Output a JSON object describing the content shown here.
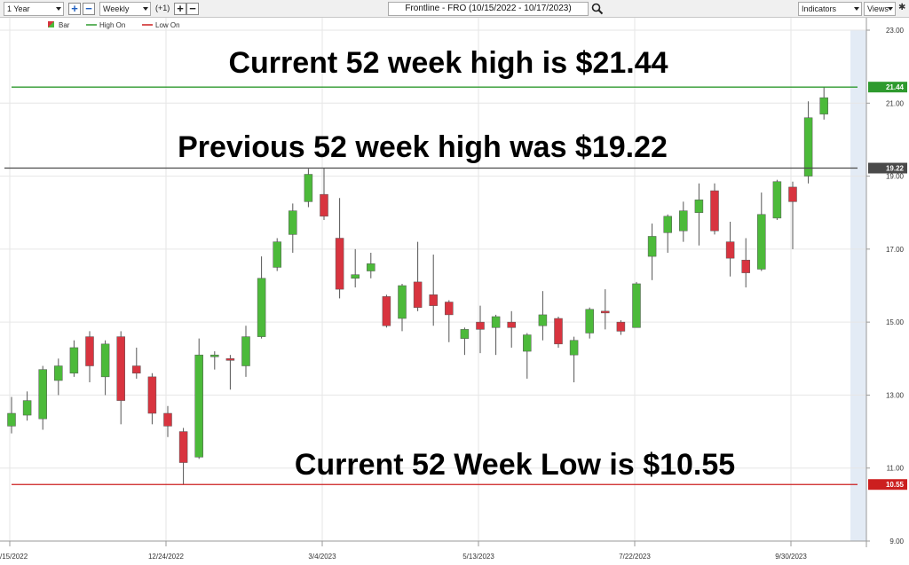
{
  "toolbar": {
    "period": "1 Year",
    "interval": "Weekly",
    "offset": "(+1)",
    "symbol": "Frontline - FRO (10/15/2022 - 10/17/2023)",
    "indicators": "Indicators",
    "views": "Views"
  },
  "legend": {
    "bar": "Bar",
    "high_on": "High On",
    "low_on": "Low On"
  },
  "colors": {
    "up": "#4cba3a",
    "down": "#d8343f",
    "high_line": "#2e9a2e",
    "prev_high_line": "#4a4a4a",
    "low_line": "#cc1f1f"
  },
  "annotations": {
    "current_high": "Current 52 week high is $21.44",
    "previous_high": "Previous 52 week high was $19.22",
    "current_low": "Current 52 Week Low is $10.55"
  },
  "chart_data": {
    "type": "candlestick",
    "y_range": [
      9.0,
      23.0
    ],
    "y_ticks": [
      "23.00",
      "21.00",
      "19.00",
      "17.00",
      "15.00",
      "13.00",
      "11.00",
      "9.00"
    ],
    "x_labels": [
      {
        "label": "/15/2022",
        "index": 0
      },
      {
        "label": "12/24/2022",
        "index": 10
      },
      {
        "label": "3/4/2023",
        "index": 20
      },
      {
        "label": "5/13/2023",
        "index": 30
      },
      {
        "label": "7/22/2023",
        "index": 40
      },
      {
        "label": "9/30/2023",
        "index": 50
      }
    ],
    "price_lines": [
      {
        "name": "current-high",
        "value": 21.44,
        "label": "21.44"
      },
      {
        "name": "previous-high",
        "value": 19.22,
        "label": "19.22"
      },
      {
        "name": "current-low",
        "value": 10.55,
        "label": "10.55"
      }
    ],
    "candles": [
      {
        "o": 12.15,
        "h": 12.95,
        "l": 11.95,
        "c": 12.5
      },
      {
        "o": 12.45,
        "h": 13.1,
        "l": 12.3,
        "c": 12.85
      },
      {
        "o": 12.35,
        "h": 13.8,
        "l": 12.05,
        "c": 13.7
      },
      {
        "o": 13.4,
        "h": 14.0,
        "l": 13.0,
        "c": 13.8
      },
      {
        "o": 13.6,
        "h": 14.5,
        "l": 13.5,
        "c": 14.3
      },
      {
        "o": 14.6,
        "h": 14.75,
        "l": 13.35,
        "c": 13.8
      },
      {
        "o": 13.5,
        "h": 14.5,
        "l": 13.0,
        "c": 14.4
      },
      {
        "o": 14.6,
        "h": 14.75,
        "l": 12.2,
        "c": 12.85
      },
      {
        "o": 13.8,
        "h": 14.3,
        "l": 13.45,
        "c": 13.6
      },
      {
        "o": 13.5,
        "h": 13.6,
        "l": 12.2,
        "c": 12.5
      },
      {
        "o": 12.5,
        "h": 12.7,
        "l": 11.85,
        "c": 12.15
      },
      {
        "o": 12.0,
        "h": 12.1,
        "l": 10.55,
        "c": 11.15
      },
      {
        "o": 11.3,
        "h": 14.55,
        "l": 11.25,
        "c": 14.1
      },
      {
        "o": 14.05,
        "h": 14.2,
        "l": 13.7,
        "c": 14.1
      },
      {
        "o": 14.0,
        "h": 14.1,
        "l": 13.15,
        "c": 13.95
      },
      {
        "o": 13.8,
        "h": 14.9,
        "l": 13.5,
        "c": 14.6
      },
      {
        "o": 14.6,
        "h": 16.8,
        "l": 14.55,
        "c": 16.2
      },
      {
        "o": 16.5,
        "h": 17.3,
        "l": 16.4,
        "c": 17.2
      },
      {
        "o": 17.4,
        "h": 18.25,
        "l": 16.9,
        "c": 18.05
      },
      {
        "o": 18.3,
        "h": 19.2,
        "l": 18.15,
        "c": 19.05
      },
      {
        "o": 18.5,
        "h": 19.22,
        "l": 17.8,
        "c": 17.9
      },
      {
        "o": 17.3,
        "h": 18.4,
        "l": 15.65,
        "c": 15.9
      },
      {
        "o": 16.2,
        "h": 17.0,
        "l": 15.95,
        "c": 16.3
      },
      {
        "o": 16.4,
        "h": 16.9,
        "l": 16.2,
        "c": 16.6
      },
      {
        "o": 15.7,
        "h": 15.75,
        "l": 14.85,
        "c": 14.9
      },
      {
        "o": 15.1,
        "h": 16.05,
        "l": 14.75,
        "c": 16.0
      },
      {
        "o": 16.1,
        "h": 17.2,
        "l": 15.3,
        "c": 15.4
      },
      {
        "o": 15.75,
        "h": 16.85,
        "l": 14.9,
        "c": 15.45
      },
      {
        "o": 15.55,
        "h": 15.6,
        "l": 14.45,
        "c": 15.2
      },
      {
        "o": 14.55,
        "h": 14.85,
        "l": 14.1,
        "c": 14.8
      },
      {
        "o": 15.0,
        "h": 15.45,
        "l": 14.15,
        "c": 14.8
      },
      {
        "o": 14.85,
        "h": 15.2,
        "l": 14.1,
        "c": 15.15
      },
      {
        "o": 15.0,
        "h": 15.3,
        "l": 14.3,
        "c": 14.85
      },
      {
        "o": 14.2,
        "h": 14.7,
        "l": 13.45,
        "c": 14.65
      },
      {
        "o": 14.9,
        "h": 15.85,
        "l": 14.5,
        "c": 15.2
      },
      {
        "o": 15.1,
        "h": 15.15,
        "l": 14.3,
        "c": 14.4
      },
      {
        "o": 14.1,
        "h": 14.6,
        "l": 13.35,
        "c": 14.5
      },
      {
        "o": 14.7,
        "h": 15.4,
        "l": 14.55,
        "c": 15.35
      },
      {
        "o": 15.3,
        "h": 15.9,
        "l": 14.8,
        "c": 15.25
      },
      {
        "o": 15.0,
        "h": 15.05,
        "l": 14.65,
        "c": 14.75
      },
      {
        "o": 14.85,
        "h": 16.1,
        "l": 14.85,
        "c": 16.05
      },
      {
        "o": 16.8,
        "h": 17.7,
        "l": 16.15,
        "c": 17.35
      },
      {
        "o": 17.45,
        "h": 17.95,
        "l": 16.9,
        "c": 17.9
      },
      {
        "o": 17.5,
        "h": 18.3,
        "l": 17.2,
        "c": 18.05
      },
      {
        "o": 18.0,
        "h": 18.8,
        "l": 17.1,
        "c": 18.35
      },
      {
        "o": 18.6,
        "h": 18.8,
        "l": 17.4,
        "c": 17.5
      },
      {
        "o": 17.2,
        "h": 17.75,
        "l": 16.25,
        "c": 16.75
      },
      {
        "o": 16.7,
        "h": 17.3,
        "l": 15.95,
        "c": 16.35
      },
      {
        "o": 16.45,
        "h": 18.55,
        "l": 16.4,
        "c": 17.95
      },
      {
        "o": 17.85,
        "h": 18.9,
        "l": 17.8,
        "c": 18.85
      },
      {
        "o": 18.7,
        "h": 18.85,
        "l": 17.0,
        "c": 18.3
      },
      {
        "o": 19.0,
        "h": 21.05,
        "l": 18.8,
        "c": 20.6
      },
      {
        "o": 20.7,
        "h": 21.44,
        "l": 20.55,
        "c": 21.15
      }
    ]
  }
}
